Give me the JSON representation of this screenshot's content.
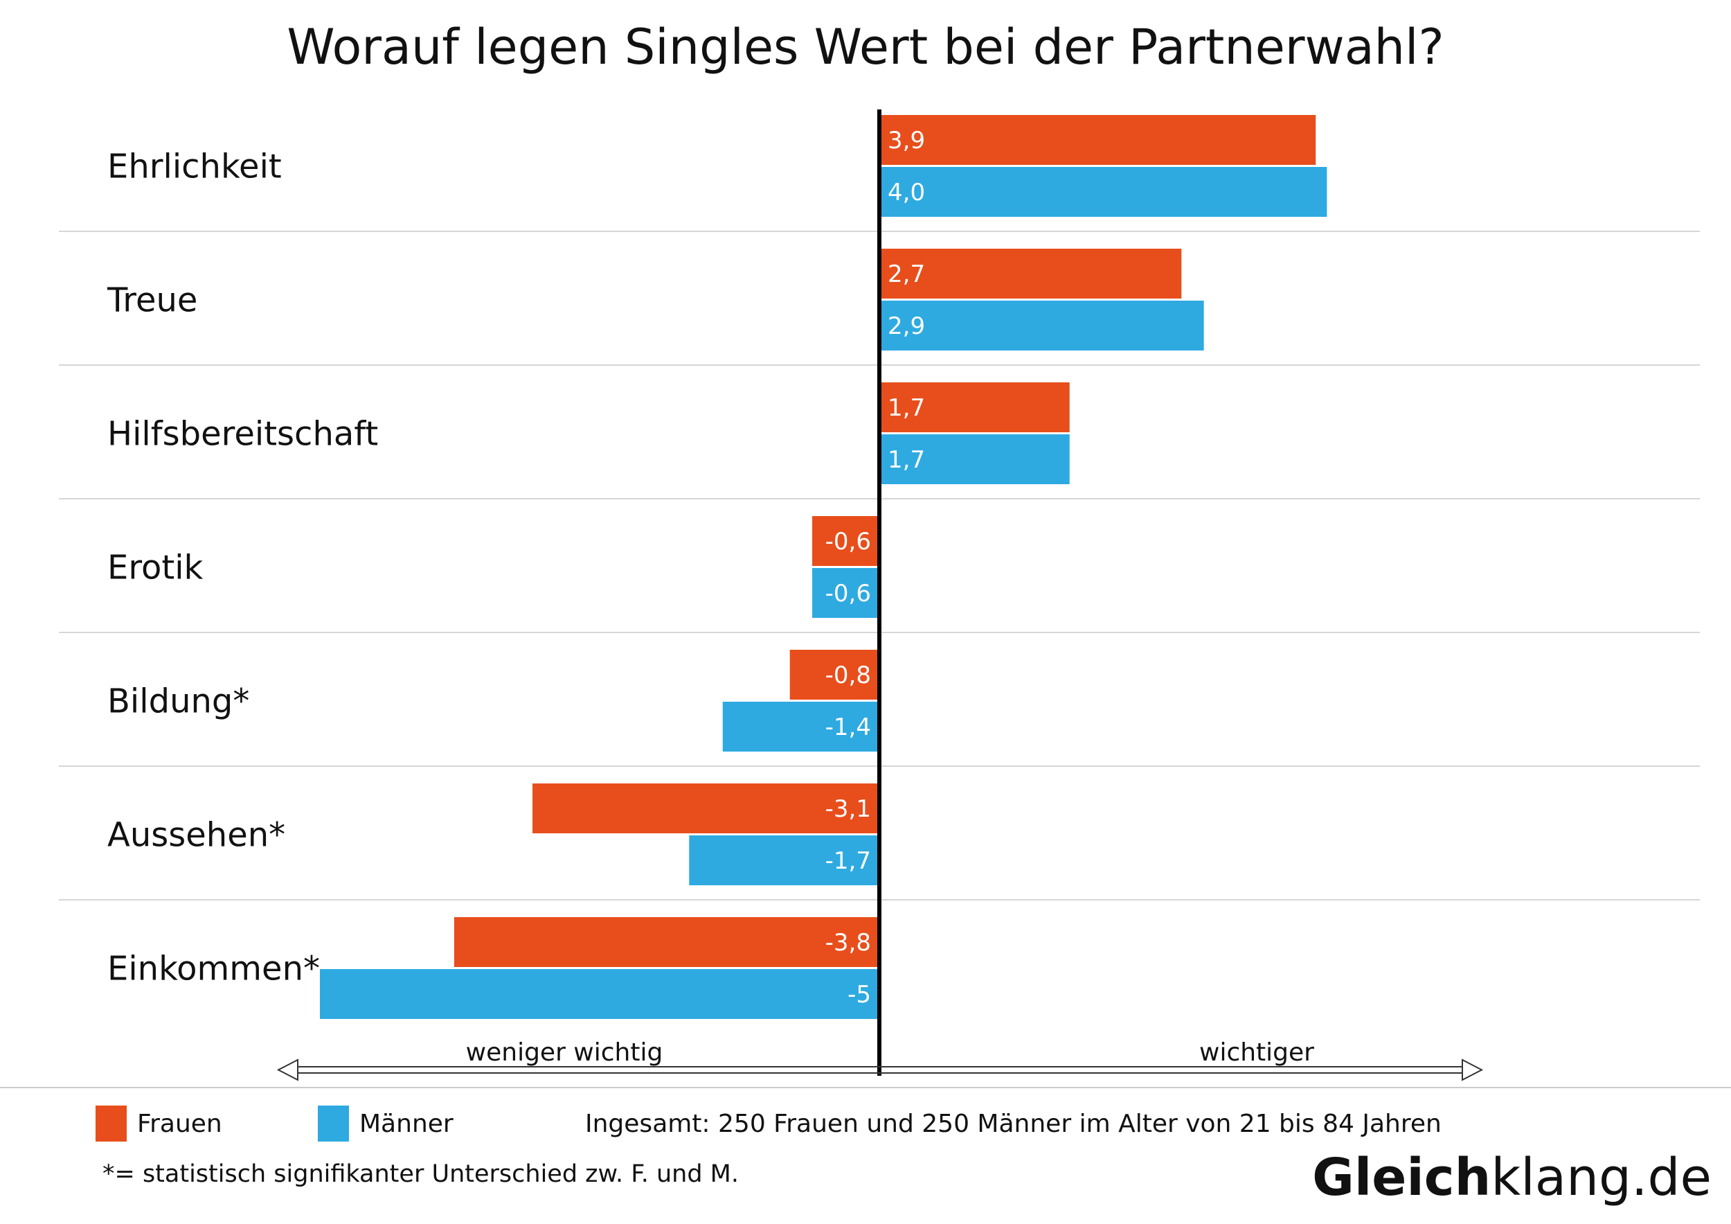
{
  "chart_data": {
    "type": "bar",
    "orientation": "horizontal",
    "title": "Worauf legen Singles Wert bei der Partnerwahl?",
    "categories": [
      "Ehrlichkeit",
      "Treue",
      "Hilfsbereitschaft",
      "Erotik",
      "Bildung*",
      "Aussehen*",
      "Einkommen*"
    ],
    "series": [
      {
        "name": "Frauen",
        "color": "#e84e1c",
        "values": [
          3.9,
          2.7,
          1.7,
          -0.6,
          -0.8,
          -3.1,
          -3.8
        ],
        "labels": [
          "3,9",
          "2,7",
          "1,7",
          "-0,6",
          "-0,8",
          "-3,1",
          "-3,8"
        ]
      },
      {
        "name": "Männer",
        "color": "#2eaae1",
        "values": [
          4.0,
          2.9,
          1.7,
          -0.6,
          -1.4,
          -1.7,
          -5.0
        ],
        "labels": [
          "4,0",
          "2,9",
          "1,7",
          "-0,6",
          "-1,4",
          "-1,7",
          "-5"
        ]
      }
    ],
    "xlim": [
      -5,
      4
    ],
    "axis_left_label": "weniger wichtig",
    "axis_right_label": "wichtiger",
    "legend_placement": "bottom-left",
    "grid": false,
    "row_separators": true
  },
  "note": "Ingesamt: 250 Frauen und 250 Männer im Alter von 21 bis 84 Jahren",
  "footnote": "*= statistisch signifikanter Unterschied zw. F. und M.",
  "brand": {
    "bold": "Gleich",
    "light": "klang.de"
  }
}
